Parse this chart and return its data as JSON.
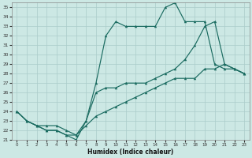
{
  "xlabel": "Humidex (Indice chaleur)",
  "xlim": [
    -0.5,
    23.5
  ],
  "ylim": [
    21,
    35.5
  ],
  "xticks": [
    0,
    1,
    2,
    3,
    4,
    5,
    6,
    7,
    8,
    9,
    10,
    11,
    12,
    13,
    14,
    15,
    16,
    17,
    18,
    19,
    20,
    21,
    22,
    23
  ],
  "yticks": [
    21,
    22,
    23,
    24,
    25,
    26,
    27,
    28,
    29,
    30,
    31,
    32,
    33,
    34,
    35
  ],
  "bg_color": "#cce8e4",
  "grid_color": "#aaccca",
  "line_color": "#1a6b60",
  "line1_x": [
    0,
    1,
    2,
    3,
    4,
    5,
    6,
    7,
    8,
    9,
    10,
    11,
    12,
    13,
    14,
    15,
    16,
    17,
    18,
    19,
    20,
    21,
    22,
    23
  ],
  "line1_y": [
    24,
    23,
    22.5,
    22,
    22,
    21.5,
    21,
    23,
    27,
    32,
    33.5,
    33,
    33,
    33,
    33,
    35,
    35.5,
    33.5,
    33.5,
    33.5,
    29,
    28.5,
    28.5,
    28
  ],
  "line2_x": [
    0,
    1,
    2,
    3,
    4,
    5,
    6,
    7,
    8,
    9,
    10,
    11,
    12,
    13,
    14,
    15,
    16,
    17,
    18,
    19,
    20,
    21,
    22,
    23
  ],
  "line2_y": [
    24,
    23,
    22.5,
    22,
    22,
    21.5,
    21.5,
    23,
    26,
    26.5,
    26.5,
    27,
    27,
    27,
    27.5,
    28,
    28.5,
    29.5,
    31,
    33,
    33.5,
    29,
    28.5,
    28
  ],
  "line3_x": [
    0,
    1,
    2,
    3,
    4,
    5,
    6,
    7,
    8,
    9,
    10,
    11,
    12,
    13,
    14,
    15,
    16,
    17,
    18,
    19,
    20,
    21,
    22,
    23
  ],
  "line3_y": [
    24,
    23,
    22.5,
    22.5,
    22.5,
    22,
    21.5,
    22.5,
    23.5,
    24,
    24.5,
    25,
    25.5,
    26,
    26.5,
    27,
    27.5,
    27.5,
    27.5,
    28.5,
    28.5,
    29,
    28.5,
    28
  ]
}
